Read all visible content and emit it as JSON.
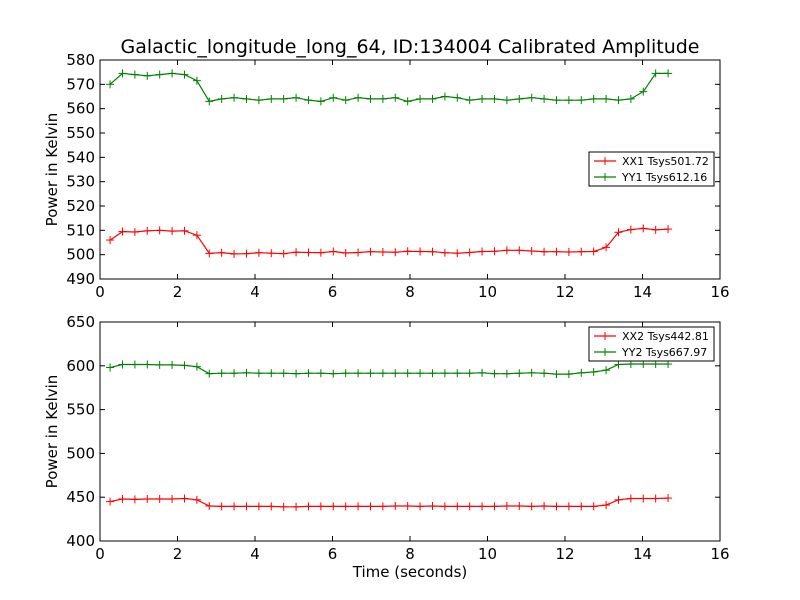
{
  "figure": {
    "title": "Galactic_longitude_long_64, ID:134004 Calibrated Amplitude"
  },
  "chart_data": [
    {
      "type": "line",
      "title": "Galactic_longitude_long_64, ID:134004 Calibrated Amplitude",
      "xlabel": "",
      "ylabel": "Power in Kelvin",
      "xlim": [
        0,
        16
      ],
      "ylim": [
        490,
        580
      ],
      "xticks": [
        "0",
        "2",
        "4",
        "6",
        "8",
        "10",
        "12",
        "14",
        "16"
      ],
      "yticks": [
        "490",
        "500",
        "510",
        "520",
        "530",
        "540",
        "550",
        "560",
        "570",
        "580"
      ],
      "grid": false,
      "legend_position": "center-right",
      "x": [
        0.26,
        0.58,
        0.9,
        1.22,
        1.54,
        1.86,
        2.18,
        2.5,
        2.82,
        3.14,
        3.46,
        3.78,
        4.1,
        4.42,
        4.74,
        5.06,
        5.38,
        5.7,
        6.02,
        6.34,
        6.66,
        6.98,
        7.3,
        7.62,
        7.94,
        8.26,
        8.58,
        8.9,
        9.22,
        9.54,
        9.86,
        10.18,
        10.5,
        10.82,
        11.14,
        11.46,
        11.78,
        12.1,
        12.42,
        12.74,
        13.06,
        13.38,
        13.7,
        14.02,
        14.34,
        14.66
      ],
      "series": [
        {
          "name": "XX1 Tsys501.72",
          "color": "#ff0000",
          "values": [
            506,
            509.5,
            509.3,
            509.8,
            510,
            509.7,
            509.8,
            508,
            500.5,
            500.8,
            500.3,
            500.4,
            500.8,
            500.6,
            500.4,
            501,
            500.9,
            500.8,
            501.3,
            500.7,
            500.9,
            501.2,
            501.1,
            501,
            501.4,
            501.3,
            501.2,
            500.8,
            500.6,
            500.9,
            501.3,
            501.4,
            501.8,
            501.8,
            501.5,
            501.2,
            501.2,
            501.1,
            501.2,
            501.3,
            503,
            509.2,
            510.3,
            510.8,
            510.2,
            510.5
          ]
        },
        {
          "name": "YY1 Tsys612.16",
          "color": "#008000",
          "values": [
            570,
            574.5,
            574,
            573.5,
            574,
            574.5,
            574,
            571.5,
            563,
            564,
            564.5,
            564,
            563.5,
            564,
            564,
            564.5,
            563.5,
            563,
            564.5,
            563.5,
            564.5,
            564,
            564,
            564.5,
            563,
            564,
            564,
            565,
            564.5,
            563.5,
            564,
            564,
            563.5,
            564,
            564.5,
            564,
            563.5,
            563.5,
            563.5,
            564,
            564,
            563.5,
            564,
            567,
            574.5,
            574.5
          ]
        }
      ]
    },
    {
      "type": "line",
      "title": "",
      "xlabel": "Time (seconds)",
      "ylabel": "Power in Kelvin",
      "xlim": [
        0,
        16
      ],
      "ylim": [
        400,
        650
      ],
      "xticks": [
        "0",
        "2",
        "4",
        "6",
        "8",
        "10",
        "12",
        "14",
        "16"
      ],
      "yticks": [
        "400",
        "450",
        "500",
        "550",
        "600",
        "650"
      ],
      "grid": false,
      "legend_position": "top-right",
      "x": [
        0.26,
        0.58,
        0.9,
        1.22,
        1.54,
        1.86,
        2.18,
        2.5,
        2.82,
        3.14,
        3.46,
        3.78,
        4.1,
        4.42,
        4.74,
        5.06,
        5.38,
        5.7,
        6.02,
        6.34,
        6.66,
        6.98,
        7.3,
        7.62,
        7.94,
        8.26,
        8.58,
        8.9,
        9.22,
        9.54,
        9.86,
        10.18,
        10.5,
        10.82,
        11.14,
        11.46,
        11.78,
        12.1,
        12.42,
        12.74,
        13.06,
        13.38,
        13.7,
        14.02,
        14.34,
        14.66
      ],
      "series": [
        {
          "name": "XX2 Tsys442.81",
          "color": "#ff0000",
          "values": [
            445,
            448,
            447.5,
            448,
            448,
            448,
            448.5,
            447,
            440,
            439.5,
            439.5,
            439.5,
            439.5,
            439.5,
            439,
            439,
            439.5,
            439.5,
            439.5,
            439.5,
            439.5,
            439.5,
            439.5,
            440,
            440,
            439.5,
            440,
            439.5,
            439.5,
            439.5,
            439.5,
            439.5,
            440,
            440,
            439.5,
            440,
            439.5,
            439.5,
            439.5,
            439.5,
            441,
            447,
            448.5,
            448.5,
            448.5,
            449
          ]
        },
        {
          "name": "YY2 Tsys667.97",
          "color": "#008000",
          "values": [
            598,
            601.5,
            601.5,
            601.5,
            601,
            601,
            600.5,
            599,
            591,
            591.5,
            591.5,
            592,
            591.5,
            591.5,
            591.5,
            591,
            591.5,
            591.5,
            591,
            591.5,
            591.5,
            591.5,
            591.5,
            591.5,
            591.5,
            591.5,
            591.5,
            591.5,
            591.5,
            591.5,
            592,
            591,
            591,
            591.5,
            592,
            591.5,
            590.5,
            590.5,
            592,
            593,
            595,
            601.5,
            602,
            602,
            602,
            602
          ]
        }
      ]
    }
  ]
}
